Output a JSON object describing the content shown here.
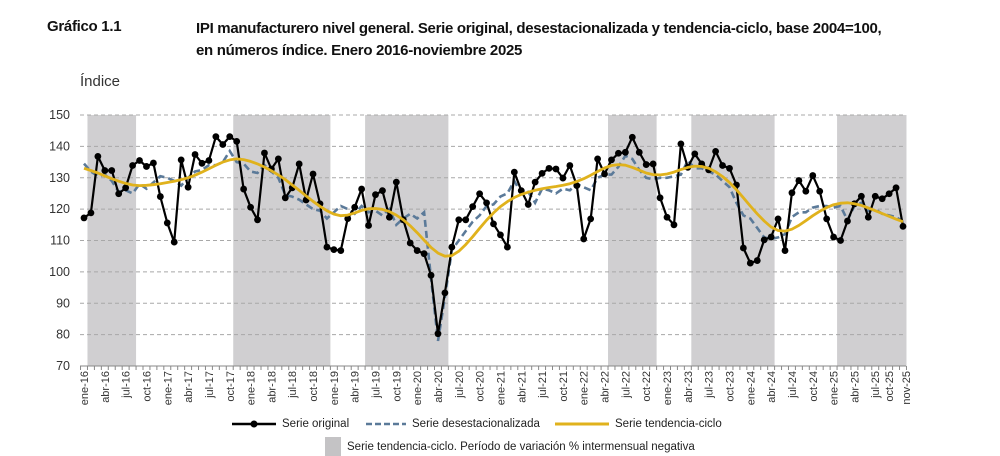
{
  "header": {
    "figure_label": "Gráfico 1.1",
    "title_line1": "IPI manufacturero nivel general. Serie original, desestacionalizada y tendencia-ciclo, base 2004=100,",
    "title_line2": "en números índice. Enero 2016-noviembre 2025"
  },
  "chart_data": {
    "type": "line",
    "title": "IPI manufacturero nivel general. Serie original, desestacionalizada y tendencia-ciclo, base 2004=100, en números índice. Enero 2016-noviembre 2025",
    "ylabel": "Índice",
    "xlabel": "",
    "ylim": [
      70,
      150
    ],
    "yticks": [
      70,
      80,
      90,
      100,
      110,
      120,
      130,
      140,
      150
    ],
    "grid": "horizontal dashed",
    "x_start": "ene-16",
    "x_end": "nov-25",
    "n_months": 119,
    "xtick_labels": [
      "ene-16",
      "abr-16",
      "jul-16",
      "oct-16",
      "ene-17",
      "abr-17",
      "jul-17",
      "oct-17",
      "ene-18",
      "abr-18",
      "jul-18",
      "oct-18",
      "ene-19",
      "abr-19",
      "jul-19",
      "oct-19",
      "ene-20",
      "abr-20",
      "jul-20",
      "oct-20",
      "ene-21",
      "abr-21",
      "jul-21",
      "oct-21",
      "ene-22",
      "abr-22",
      "jul-22",
      "oct-22",
      "ene-23",
      "abr-23",
      "jul-23",
      "oct-23",
      "ene-24",
      "abr-24",
      "jul-24",
      "oct-24",
      "ene-25",
      "abr-25",
      "jul-25",
      "oct-25",
      "nov-25"
    ],
    "xtick_month_index": [
      0,
      3,
      6,
      9,
      12,
      15,
      18,
      21,
      24,
      27,
      30,
      33,
      36,
      39,
      42,
      45,
      48,
      51,
      54,
      57,
      60,
      63,
      66,
      69,
      72,
      75,
      78,
      81,
      84,
      87,
      90,
      93,
      96,
      99,
      102,
      105,
      108,
      111,
      114,
      117,
      118
    ],
    "shaded_periods_month_index": [
      [
        1,
        7
      ],
      [
        22,
        35
      ],
      [
        41,
        52
      ],
      [
        76,
        82
      ],
      [
        88,
        99
      ],
      [
        109,
        118
      ]
    ],
    "series": [
      {
        "name": "Serie original",
        "color": "#000000",
        "style": "solid-markers",
        "values": [
          117.2,
          118.8,
          136.8,
          132.3,
          132.3,
          124.9,
          126.8,
          133.9,
          135.5,
          133.6,
          134.7,
          124,
          115.6,
          109.5,
          135.7,
          127,
          137.4,
          134.6,
          135.5,
          143.1,
          140.6,
          143.1,
          141.6,
          126.4,
          120.6,
          116.6,
          137.9,
          132.8,
          136,
          123.6,
          126.8,
          134.4,
          122.9,
          131.2,
          121.7,
          107.9,
          107.1,
          106.8,
          117,
          120.6,
          126.4,
          114.8,
          124.6,
          125.9,
          117.4,
          128.6,
          116.6,
          109.2,
          106.8,
          105.8,
          98.9,
          80.3,
          93.3,
          107.9,
          116.6,
          116.6,
          120.8,
          124.9,
          122,
          115.3,
          111.8,
          107.9,
          131.8,
          125.9,
          121.5,
          128.6,
          131.4,
          133,
          132.8,
          129.9,
          133.9,
          127.5,
          110.5,
          116.9,
          136,
          131.2,
          135.7,
          137.8,
          138.1,
          142.9,
          138.1,
          134.2,
          134.4,
          123.6,
          117.4,
          115,
          140.8,
          133.3,
          137.6,
          134.4,
          132.5,
          138.4,
          133.9,
          133,
          127.7,
          107.6,
          102.8,
          103.6,
          110.2,
          111.1,
          116.9,
          106.8,
          125.2,
          129.1,
          125.7,
          130.7,
          125.7,
          116.9,
          111.1,
          110,
          116.2,
          121.7,
          124.1,
          117.4,
          124.1,
          123.3,
          124.9,
          126.8,
          114.5
        ]
      },
      {
        "name": "Serie desestacionalizada",
        "color": "#5b7a99",
        "style": "dashed",
        "values": [
          134.5,
          132,
          130.5,
          131,
          129,
          125.5,
          126,
          125,
          128,
          126.5,
          128.5,
          130.5,
          130,
          129,
          127.5,
          130,
          132,
          132.5,
          134,
          134,
          135,
          138.5,
          135,
          134.5,
          132,
          131.5,
          134,
          132,
          130,
          124.5,
          124,
          123,
          121.5,
          120,
          119.5,
          117,
          119,
          121,
          120,
          118.5,
          121,
          119,
          119.5,
          118,
          120,
          115,
          117,
          118.5,
          117,
          119,
          98,
          78,
          92,
          107,
          110,
          113,
          116,
          118,
          121,
          121.5,
          124,
          125,
          129,
          125,
          125.5,
          122,
          126.5,
          126,
          125,
          126.5,
          126,
          128,
          127,
          126,
          130,
          131,
          131,
          133.5,
          137,
          136,
          132.5,
          130,
          129.5,
          130,
          130,
          130.5,
          131,
          135.5,
          133,
          133,
          132,
          131,
          129,
          127,
          122,
          118,
          117,
          114,
          111,
          110.5,
          111,
          112,
          117.5,
          119,
          119,
          120.5,
          121,
          121,
          120.5,
          121,
          116.5,
          121,
          122,
          119.5,
          120,
          118.5,
          118,
          117.5,
          116
        ]
      },
      {
        "name": "Serie tendencia-ciclo",
        "color": "#e0b21c",
        "style": "solid-thick",
        "values": [
          133,
          132.3,
          131.5,
          130.6,
          129.7,
          128.9,
          128.2,
          127.7,
          127.5,
          127.6,
          127.8,
          128.1,
          128.5,
          128.9,
          129.4,
          130,
          130.8,
          131.8,
          132.9,
          134,
          135,
          135.7,
          136,
          135.8,
          135.2,
          134.4,
          133.4,
          132.2,
          130.9,
          129.4,
          127.7,
          126,
          124.2,
          122.5,
          120.9,
          119.5,
          118.4,
          117.9,
          118.1,
          118.8,
          119.6,
          120.1,
          120.2,
          119.9,
          119.2,
          118.1,
          116.6,
          114.7,
          112.5,
          110.1,
          107.8,
          106,
          105,
          105.2,
          106.6,
          108.7,
          111.2,
          113.9,
          116.5,
          118.8,
          120.8,
          122.4,
          123.7,
          124.7,
          125.4,
          126,
          126.5,
          126.9,
          127.2,
          127.6,
          128.1,
          128.8,
          129.7,
          130.8,
          132,
          133.1,
          133.9,
          134.2,
          134,
          133.3,
          132.4,
          131.5,
          131,
          130.9,
          131.2,
          131.8,
          132.6,
          133.3,
          133.7,
          133.6,
          133,
          131.9,
          130.4,
          128.5,
          126.2,
          123.6,
          121,
          118.5,
          116.2,
          114.3,
          113.2,
          113,
          113.6,
          114.8,
          116.3,
          117.9,
          119.3,
          120.5,
          121.4,
          121.9,
          122,
          121.7,
          121.2,
          120.4,
          119.5,
          118.6,
          117.7,
          116.8,
          116
        ]
      }
    ],
    "legend": {
      "original": "Serie original",
      "sa": "Serie desestacionalizada",
      "trend": "Serie tendencia-ciclo",
      "shaded": "Serie tendencia-ciclo. Período de variación % intermensual negativa",
      "shaded_color": "#d0cfd1",
      "placement": "bottom"
    }
  }
}
